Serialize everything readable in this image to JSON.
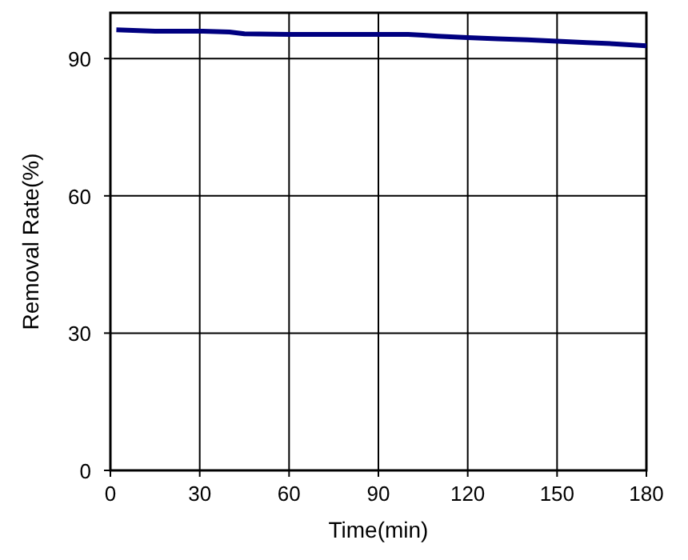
{
  "chart_data": {
    "type": "line",
    "xlabel": "Time(min)",
    "ylabel": "Removal Rate(%)",
    "x": [
      2,
      15,
      30,
      40,
      45,
      60,
      90,
      100,
      105,
      110,
      120,
      130,
      140,
      150,
      160,
      170,
      180
    ],
    "series": [
      {
        "color": "#000080",
        "values": [
          96.3,
          96,
          96,
          95.8,
          95.4,
          95.3,
          95.3,
          95.3,
          95.1,
          94.9,
          94.6,
          94.3,
          94.1,
          93.8,
          93.5,
          93.2,
          92.8
        ]
      }
    ],
    "xlim": [
      0,
      180
    ],
    "xticks": [
      0,
      30,
      60,
      90,
      120,
      150,
      180
    ],
    "ylim": [
      0,
      100
    ],
    "yticks": [
      0,
      30,
      60,
      90
    ],
    "grid": true,
    "marker": "none",
    "line_style": "solid"
  }
}
